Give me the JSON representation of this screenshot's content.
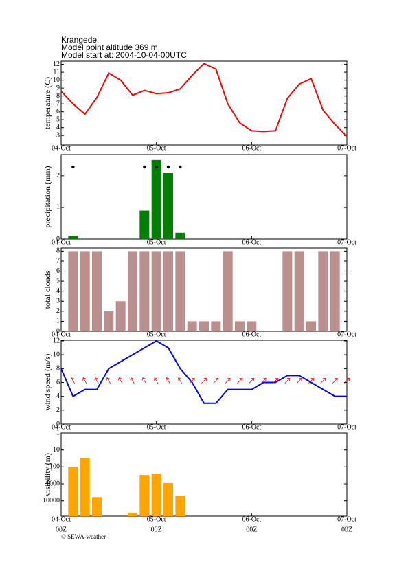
{
  "header": {
    "title": "Krangede",
    "altitude": "Model point altitude  369 m",
    "start": "Model start at: 2004-10-04-00UTC"
  },
  "footer": "© SEWA-weather",
  "chart_data": [
    {
      "type": "line",
      "ylabel": "temperature (C)",
      "color": "#ff0000",
      "x": [
        0,
        3,
        6,
        9,
        12,
        15,
        18,
        21,
        24,
        27,
        30,
        33,
        36,
        39,
        42,
        45,
        48,
        51,
        54,
        57,
        60,
        63,
        66,
        69,
        72
      ],
      "values": [
        8.6,
        7.0,
        5.7,
        7.8,
        10.9,
        10.0,
        8.1,
        8.7,
        8.3,
        8.4,
        8.9,
        10.6,
        12.1,
        11.4,
        7.0,
        4.6,
        3.6,
        3.5,
        3.6,
        7.7,
        9.5,
        10.2,
        6.2,
        4.4,
        2.9
      ],
      "xlim": [
        0,
        72
      ],
      "xticks": [
        {
          "value": 0,
          "label": "04-Oct"
        },
        {
          "value": 24,
          "label": "05-Oct"
        },
        {
          "value": 48,
          "label": "06-Oct"
        },
        {
          "value": 72,
          "label": "07-Oct"
        }
      ],
      "ylim": [
        1.8,
        12.4
      ],
      "yticks": [
        3,
        4,
        5,
        6,
        7,
        8,
        9,
        10,
        11,
        12
      ]
    },
    {
      "type": "bar",
      "ylabel": "precipitation (mm)",
      "color": "#008000",
      "x": [
        0,
        3,
        6,
        9,
        12,
        15,
        18,
        21,
        24,
        27,
        30,
        33,
        36,
        39,
        42,
        45,
        48,
        51,
        54,
        57,
        60,
        63,
        66,
        69,
        72
      ],
      "values": [
        0,
        0.1,
        0,
        0,
        0,
        0,
        0,
        0.9,
        2.5,
        2.1,
        0.2,
        0,
        0,
        0,
        0,
        0,
        0,
        0,
        0,
        0,
        0,
        0,
        0,
        0,
        0
      ],
      "xlim": [
        0,
        72
      ],
      "xticks": [
        {
          "value": 0,
          "label": "04-Oct"
        },
        {
          "value": 24,
          "label": "05-Oct"
        },
        {
          "value": 48,
          "label": "06-Oct"
        },
        {
          "value": 72,
          "label": "07-Oct"
        }
      ],
      "ylim": [
        0,
        2.67
      ],
      "yticks": [
        0,
        1,
        2
      ]
    },
    {
      "type": "bar",
      "ylabel": "total clouds",
      "color": "#bc8f8f",
      "x": [
        0,
        3,
        6,
        9,
        12,
        15,
        18,
        21,
        24,
        27,
        30,
        33,
        36,
        39,
        42,
        45,
        48,
        51,
        54,
        57,
        60,
        63,
        66,
        69,
        72
      ],
      "values": [
        0,
        8,
        8,
        8,
        2,
        3,
        8,
        8,
        8,
        8,
        8,
        1,
        1,
        1,
        8,
        1,
        1,
        0,
        0,
        8,
        8,
        1,
        8,
        8,
        0
      ],
      "xlim": [
        0,
        72
      ],
      "xticks": [
        {
          "value": 0,
          "label": "04-Oct"
        },
        {
          "value": 24,
          "label": "05-Oct"
        },
        {
          "value": 48,
          "label": "06-Oct"
        },
        {
          "value": 72,
          "label": "07-Oct"
        }
      ],
      "ylim": [
        0,
        8.3
      ],
      "yticks": [
        0,
        1,
        2,
        3,
        4,
        5,
        6,
        7,
        8
      ]
    },
    {
      "type": "line",
      "ylabel": "wind speed (m/s)",
      "color": "#0000ff",
      "x": [
        0,
        3,
        6,
        9,
        12,
        15,
        18,
        21,
        24,
        27,
        30,
        33,
        36,
        39,
        42,
        45,
        48,
        51,
        54,
        57,
        60,
        63,
        66,
        69,
        72
      ],
      "values": [
        8,
        4,
        5,
        5,
        8,
        9,
        10,
        11,
        12,
        11,
        8,
        6,
        3,
        3,
        5,
        5,
        5,
        6,
        6,
        7,
        7,
        6,
        5,
        4,
        4
      ],
      "xlim": [
        0,
        72
      ],
      "xticks": [
        {
          "value": 0,
          "label": "04-Oct"
        },
        {
          "value": 24,
          "label": "05-Oct"
        },
        {
          "value": 48,
          "label": "06-Oct"
        },
        {
          "value": 72,
          "label": "07-Oct"
        }
      ],
      "ylim": [
        0,
        12.1
      ],
      "yticks": [
        0,
        2,
        4,
        6,
        8,
        10,
        12
      ]
    },
    {
      "type": "bar",
      "ylabel": "visibility (m)",
      "color": "#ffa500",
      "log_scale": true,
      "y_inverted": true,
      "x": [
        0,
        3,
        6,
        9,
        12,
        15,
        18,
        21,
        24,
        27,
        30,
        33,
        36,
        39,
        42,
        45,
        48,
        51,
        54,
        57,
        60,
        63,
        66,
        69,
        72
      ],
      "values": [
        null,
        100,
        30,
        6000,
        null,
        null,
        50000,
        300,
        250,
        900,
        5000,
        null,
        null,
        null,
        null,
        null,
        null,
        null,
        null,
        null,
        null,
        null,
        null,
        null,
        null
      ],
      "xlim": [
        0,
        72
      ],
      "xticks": [
        {
          "value": 0,
          "label": "04-Oct"
        },
        {
          "value": 24,
          "label": "05-Oct"
        },
        {
          "value": 48,
          "label": "06-Oct"
        },
        {
          "value": 72,
          "label": "07-Oct"
        }
      ],
      "xtick_hour_labels": [
        "00Z",
        "00Z",
        "00Z",
        "00Z"
      ],
      "ylim": [
        1,
        80000
      ],
      "yticks": [
        1,
        10,
        100,
        1000,
        10000
      ]
    }
  ]
}
